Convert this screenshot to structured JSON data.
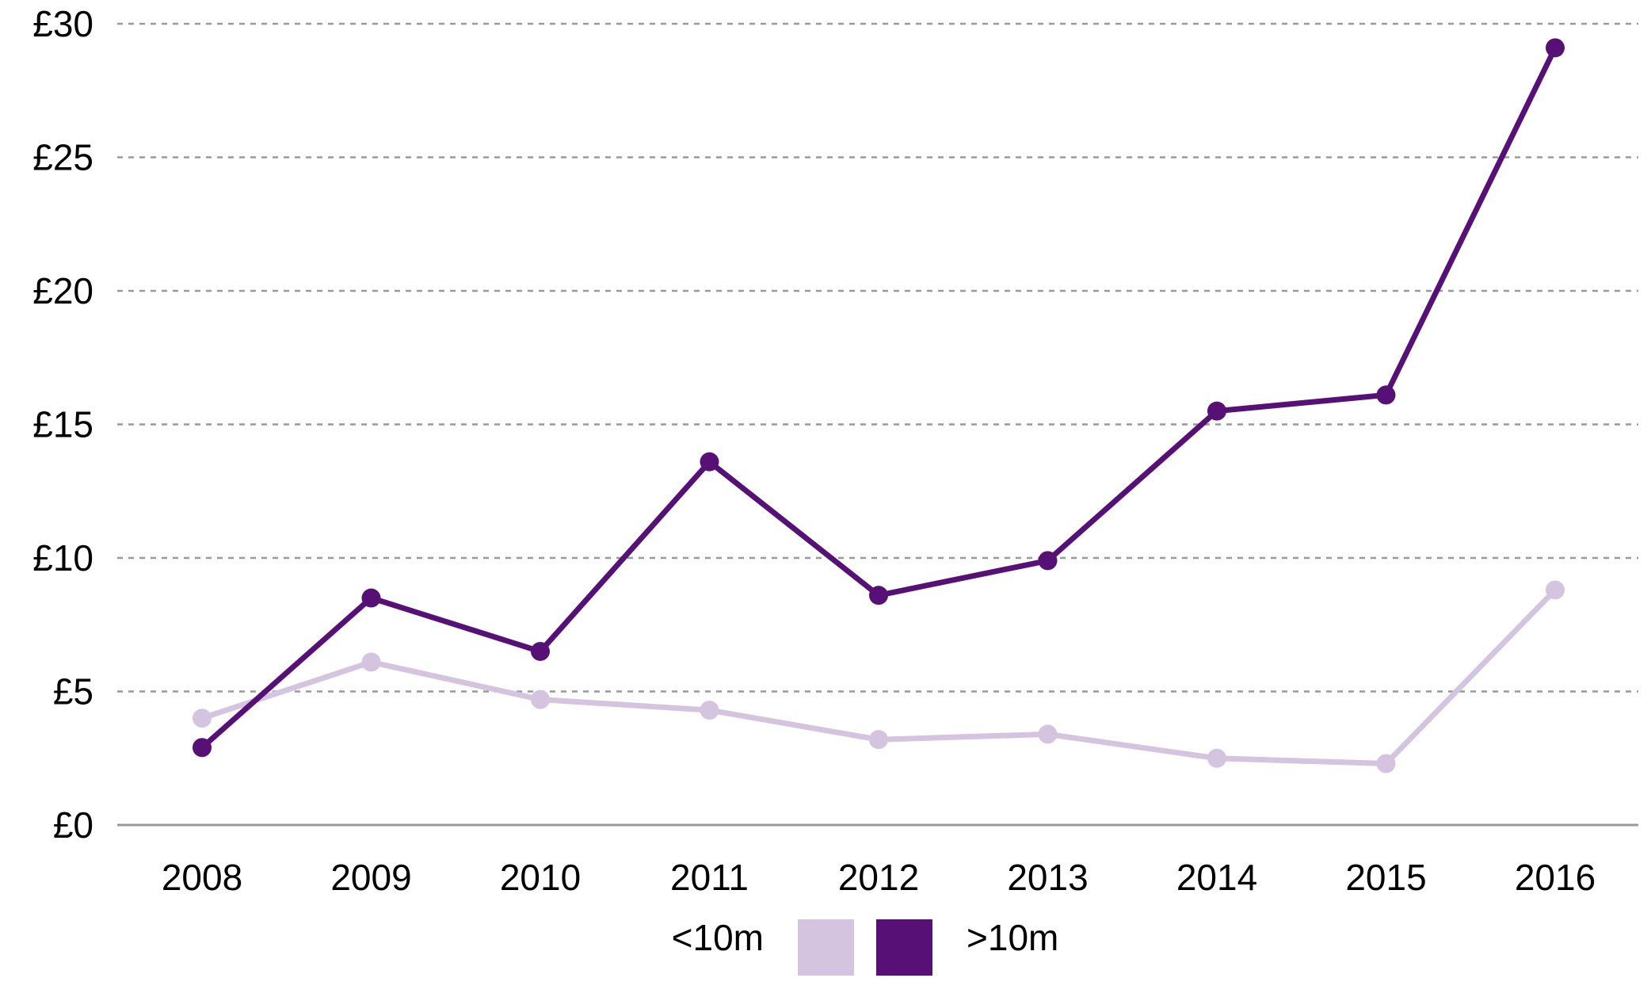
{
  "chart_data": {
    "type": "line",
    "title": "",
    "xlabel": "",
    "ylabel": "",
    "categories": [
      "2008",
      "2009",
      "2010",
      "2011",
      "2012",
      "2013",
      "2014",
      "2015",
      "2016"
    ],
    "series": [
      {
        "name": "<10m",
        "color": "#d4c4df",
        "values": [
          4.0,
          6.1,
          4.7,
          4.3,
          3.2,
          3.4,
          2.5,
          2.3,
          8.8
        ]
      },
      {
        "name": ">10m",
        "color": "#561076",
        "values": [
          2.9,
          8.5,
          6.5,
          13.6,
          8.6,
          9.9,
          15.5,
          16.1,
          29.1
        ]
      }
    ],
    "ylim": [
      0,
      30
    ],
    "yticks": [
      0,
      5,
      10,
      15,
      20,
      25,
      30
    ],
    "ytick_labels": [
      "£0",
      "£5",
      "£10",
      "£15",
      "£20",
      "£25",
      "£30"
    ],
    "grid": true,
    "legend_position": "bottom-center"
  }
}
